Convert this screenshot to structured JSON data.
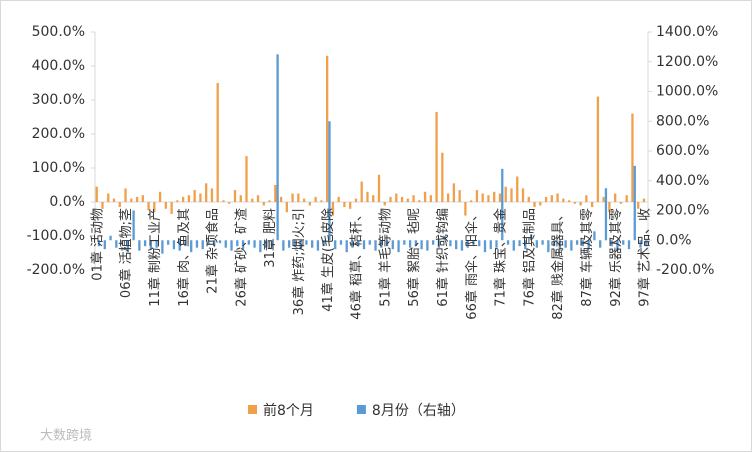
{
  "chart_data": {
    "type": "bar",
    "categories": [
      "01章 活动物",
      null,
      null,
      null,
      null,
      "06章 活植物;茎",
      null,
      null,
      null,
      null,
      "11章 制粉工业产",
      null,
      null,
      null,
      null,
      "16章 肉、鱼及其",
      null,
      null,
      null,
      null,
      "21章 杂项食品",
      null,
      null,
      null,
      null,
      "26章 矿砂、矿渣",
      null,
      null,
      null,
      null,
      "31章 肥料",
      null,
      null,
      null,
      null,
      "36章 炸药;烟火;引",
      null,
      null,
      null,
      null,
      "41章 生皮(毛皮除",
      null,
      null,
      null,
      null,
      "46章 稻草、秸秆、",
      null,
      null,
      null,
      null,
      "51章 羊毛等动物",
      null,
      null,
      null,
      null,
      "56章 絮胎、毡呢",
      null,
      null,
      null,
      null,
      "61章 针织或钩编",
      null,
      null,
      null,
      null,
      "66章 雨伞、阳伞、",
      null,
      null,
      null,
      null,
      "71章 珠宝、贵金",
      null,
      null,
      null,
      null,
      "76章 铝及其制品",
      null,
      null,
      null,
      null,
      "82章 贱金属器具、",
      null,
      null,
      null,
      null,
      "87章 车辆及其零",
      null,
      null,
      null,
      null,
      "92章 乐器及其零",
      null,
      null,
      null,
      null,
      "97章 艺术品、收"
    ],
    "series": [
      {
        "name": "前8个月",
        "color": "#f0a04b",
        "values": [
          45,
          -20,
          25,
          10,
          -15,
          40,
          10,
          15,
          20,
          -25,
          -30,
          30,
          -20,
          -35,
          5,
          15,
          20,
          35,
          25,
          55,
          40,
          350,
          5,
          -5,
          35,
          20,
          135,
          10,
          20,
          -10,
          5,
          50,
          15,
          -30,
          25,
          25,
          10,
          -10,
          15,
          5,
          430,
          -40,
          15,
          -15,
          -20,
          10,
          60,
          30,
          20,
          80,
          -10,
          15,
          25,
          15,
          10,
          20,
          5,
          30,
          20,
          265,
          145,
          25,
          55,
          35,
          -40,
          5,
          35,
          25,
          20,
          30,
          25,
          45,
          40,
          75,
          40,
          15,
          -15,
          -10,
          15,
          20,
          25,
          10,
          5,
          -5,
          -10,
          20,
          -15,
          310,
          15,
          -30,
          25,
          -5,
          20,
          260,
          -20,
          10
        ]
      },
      {
        "name": "8月份（右轴）",
        "color": "#5b9bd5",
        "axis": "y2",
        "values": [
          -40,
          -60,
          30,
          -50,
          -30,
          -80,
          200,
          -70,
          -40,
          -60,
          -50,
          -90,
          -30,
          -60,
          -70,
          -40,
          -80,
          -50,
          -60,
          -30,
          -40,
          -20,
          -50,
          -70,
          -40,
          -60,
          -30,
          -50,
          -80,
          -40,
          -60,
          1250,
          -70,
          -50,
          -40,
          -60,
          -30,
          -50,
          -70,
          -40,
          800,
          -60,
          -30,
          -80,
          -50,
          -40,
          -60,
          -30,
          -70,
          -50,
          -40,
          -60,
          -80,
          -30,
          -50,
          -40,
          -60,
          -70,
          -30,
          -50,
          30,
          -40,
          -60,
          -70,
          -50,
          -30,
          -40,
          -80,
          -60,
          -50,
          480,
          -30,
          -70,
          -40,
          -60,
          40,
          -50,
          -30,
          -80,
          -40,
          -60,
          -50,
          -70,
          -30,
          -40,
          -60,
          60,
          -50,
          350,
          -40,
          -70,
          -30,
          -60,
          500,
          -50,
          -40
        ]
      }
    ],
    "ylim": [
      -200,
      500
    ],
    "yticks": [
      {
        "value": -200,
        "label": "-200.0%"
      },
      {
        "value": -100,
        "label": "-100.0%"
      },
      {
        "value": 0,
        "label": "0.0%"
      },
      {
        "value": 100,
        "label": "100.0%"
      },
      {
        "value": 200,
        "label": "200.0%"
      },
      {
        "value": 300,
        "label": "300.0%"
      },
      {
        "value": 400,
        "label": "400.0%"
      },
      {
        "value": 500,
        "label": "500.0%"
      }
    ],
    "y2lim": [
      -200,
      1400
    ],
    "y2ticks": [
      {
        "value": -200,
        "label": "-200.0%"
      },
      {
        "value": 0,
        "label": "0.0%"
      },
      {
        "value": 200,
        "label": "200.0%"
      },
      {
        "value": 400,
        "label": "400.0%"
      },
      {
        "value": 600,
        "label": "600.0%"
      },
      {
        "value": 800,
        "label": "800.0%"
      },
      {
        "value": 1000,
        "label": "1000.0%"
      },
      {
        "value": 1200,
        "label": "1200.0%"
      },
      {
        "value": 1400,
        "label": "1400.0%"
      }
    ],
    "legend": "bottom",
    "watermark": "大数跨境"
  }
}
